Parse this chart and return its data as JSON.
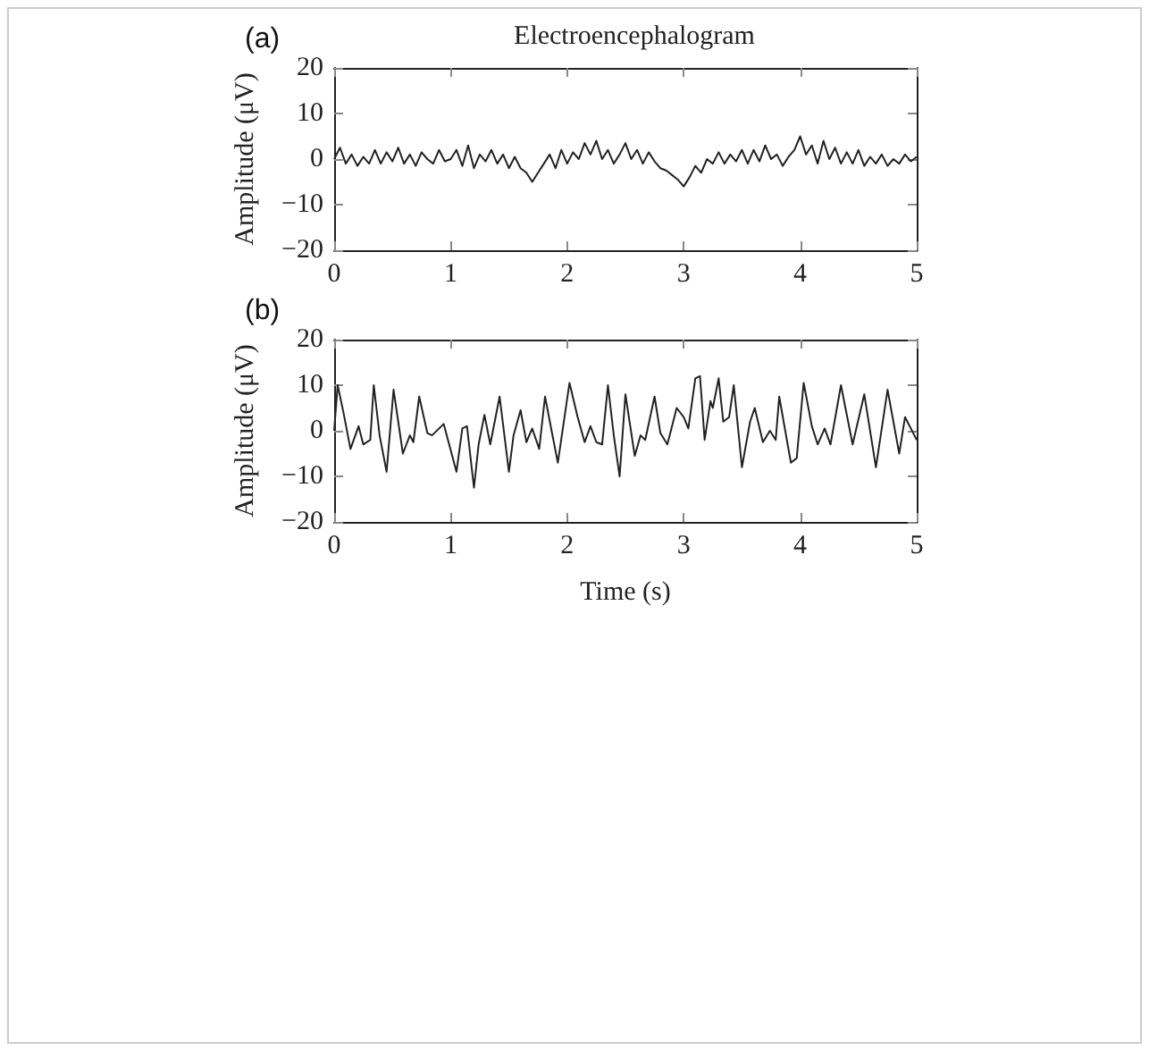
{
  "chart_data": [
    {
      "type": "line",
      "title": "Electroencephalogram",
      "ylabel": "Amplitude (μV)",
      "annotations": [
        "(a)"
      ],
      "xlim": [
        0,
        5
      ],
      "xticks": [
        0,
        1,
        2,
        3,
        4,
        5
      ],
      "ylim": [
        -20,
        20
      ],
      "yticks": [
        -20,
        -10,
        0,
        10,
        20
      ],
      "grid": false,
      "marker": "none",
      "line_style": "solid",
      "x": [
        0,
        0.05,
        0.1,
        0.15,
        0.2,
        0.25,
        0.3,
        0.35,
        0.4,
        0.45,
        0.5,
        0.55,
        0.6,
        0.65,
        0.7,
        0.75,
        0.8,
        0.85,
        0.9,
        0.95,
        1,
        1.05,
        1.1,
        1.15,
        1.2,
        1.25,
        1.3,
        1.35,
        1.4,
        1.45,
        1.5,
        1.55,
        1.6,
        1.65,
        1.7,
        1.75,
        1.8,
        1.85,
        1.9,
        1.95,
        2,
        2.05,
        2.1,
        2.15,
        2.2,
        2.25,
        2.3,
        2.35,
        2.4,
        2.45,
        2.5,
        2.55,
        2.6,
        2.65,
        2.7,
        2.75,
        2.8,
        2.85,
        2.9,
        2.95,
        3,
        3.05,
        3.1,
        3.15,
        3.2,
        3.25,
        3.3,
        3.35,
        3.4,
        3.45,
        3.5,
        3.55,
        3.6,
        3.65,
        3.7,
        3.75,
        3.8,
        3.85,
        3.9,
        3.95,
        4,
        4.05,
        4.1,
        4.15,
        4.2,
        4.25,
        4.3,
        4.35,
        4.4,
        4.45,
        4.5,
        4.55,
        4.6,
        4.65,
        4.7,
        4.75,
        4.8,
        4.85,
        4.9,
        4.95,
        5
      ],
      "series": [
        {
          "color": "#222222",
          "values": [
            0,
            2.5,
            -1,
            1,
            -1.5,
            0.5,
            -1,
            2,
            -1,
            1.5,
            -0.5,
            2.5,
            -1,
            1,
            -1.5,
            1.5,
            0,
            -1,
            2,
            -0.5,
            0,
            2,
            -1.5,
            3,
            -2,
            1,
            -0.5,
            2,
            -1,
            1,
            -2,
            0.5,
            -2,
            -3,
            -5,
            -3,
            -1,
            1,
            -2,
            2,
            -1,
            1.5,
            0,
            3.5,
            1,
            4,
            0,
            2,
            -1,
            1,
            3.5,
            0,
            2,
            -1,
            1.5,
            -0.5,
            -2,
            -2.5,
            -3.5,
            -4.5,
            -6,
            -4,
            -1.5,
            -3,
            0,
            -1,
            1.5,
            -1,
            1,
            -0.5,
            2,
            -1,
            2,
            -0.5,
            3,
            0,
            1,
            -1.5,
            0.5,
            2,
            5,
            1,
            3,
            -1,
            4,
            0,
            2.5,
            -1,
            1.5,
            -1,
            2,
            -1.5,
            0.5,
            -1,
            1,
            -1.5,
            0,
            -1,
            1,
            -0.5,
            0.5
          ]
        }
      ]
    },
    {
      "type": "line",
      "ylabel": "Amplitude (μV)",
      "xlabel": "Time (s)",
      "annotations": [
        "(b)"
      ],
      "xlim": [
        0,
        5
      ],
      "xticks": [
        0,
        1,
        2,
        3,
        4,
        5
      ],
      "ylim": [
        -20,
        20
      ],
      "yticks": [
        -20,
        -10,
        0,
        10,
        20
      ],
      "grid": false,
      "marker": "none",
      "line_style": "solid",
      "x": [
        0,
        0.03,
        0.08,
        0.14,
        0.21,
        0.25,
        0.31,
        0.34,
        0.39,
        0.45,
        0.51,
        0.59,
        0.65,
        0.68,
        0.73,
        0.8,
        0.84,
        0.94,
        1.05,
        1.1,
        1.14,
        1.2,
        1.24,
        1.29,
        1.34,
        1.42,
        1.5,
        1.54,
        1.6,
        1.65,
        1.7,
        1.76,
        1.81,
        1.87,
        1.92,
        2.02,
        2.09,
        2.15,
        2.2,
        2.25,
        2.3,
        2.35,
        2.4,
        2.45,
        2.5,
        2.58,
        2.63,
        2.67,
        2.75,
        2.8,
        2.86,
        2.94,
        3,
        3.04,
        3.1,
        3.14,
        3.18,
        3.23,
        3.25,
        3.3,
        3.34,
        3.39,
        3.43,
        3.5,
        3.57,
        3.61,
        3.68,
        3.74,
        3.79,
        3.82,
        3.92,
        3.97,
        4.03,
        4.1,
        4.15,
        4.21,
        4.26,
        4.35,
        4.45,
        4.55,
        4.65,
        4.75,
        4.85,
        4.9,
        5
      ],
      "series": [
        {
          "color": "#222222",
          "values": [
            0,
            10,
            4,
            -4,
            1,
            -3,
            -2,
            10,
            -1,
            -9,
            9,
            -5,
            -1,
            -2.5,
            7.5,
            -0.5,
            -1,
            1.5,
            -9,
            0.5,
            1,
            -12.5,
            -3,
            3.5,
            -3,
            7.5,
            -9,
            -1,
            4.5,
            -2.5,
            0.5,
            -4,
            7.5,
            -0.5,
            -7,
            10.5,
            3,
            -2.5,
            1,
            -2.5,
            -3,
            10,
            -1,
            -10,
            8,
            -5.5,
            -1,
            -2,
            7.5,
            -0.5,
            -3,
            5,
            3,
            0.5,
            11.5,
            12,
            -2,
            6.5,
            5,
            11.5,
            2,
            3,
            10,
            -8,
            2,
            5,
            -2.5,
            0,
            -2,
            7.5,
            -7,
            -6,
            10.5,
            1,
            -3,
            0.5,
            -3,
            10,
            -3,
            8,
            -8,
            9,
            -5,
            3,
            -2
          ]
        }
      ]
    }
  ]
}
